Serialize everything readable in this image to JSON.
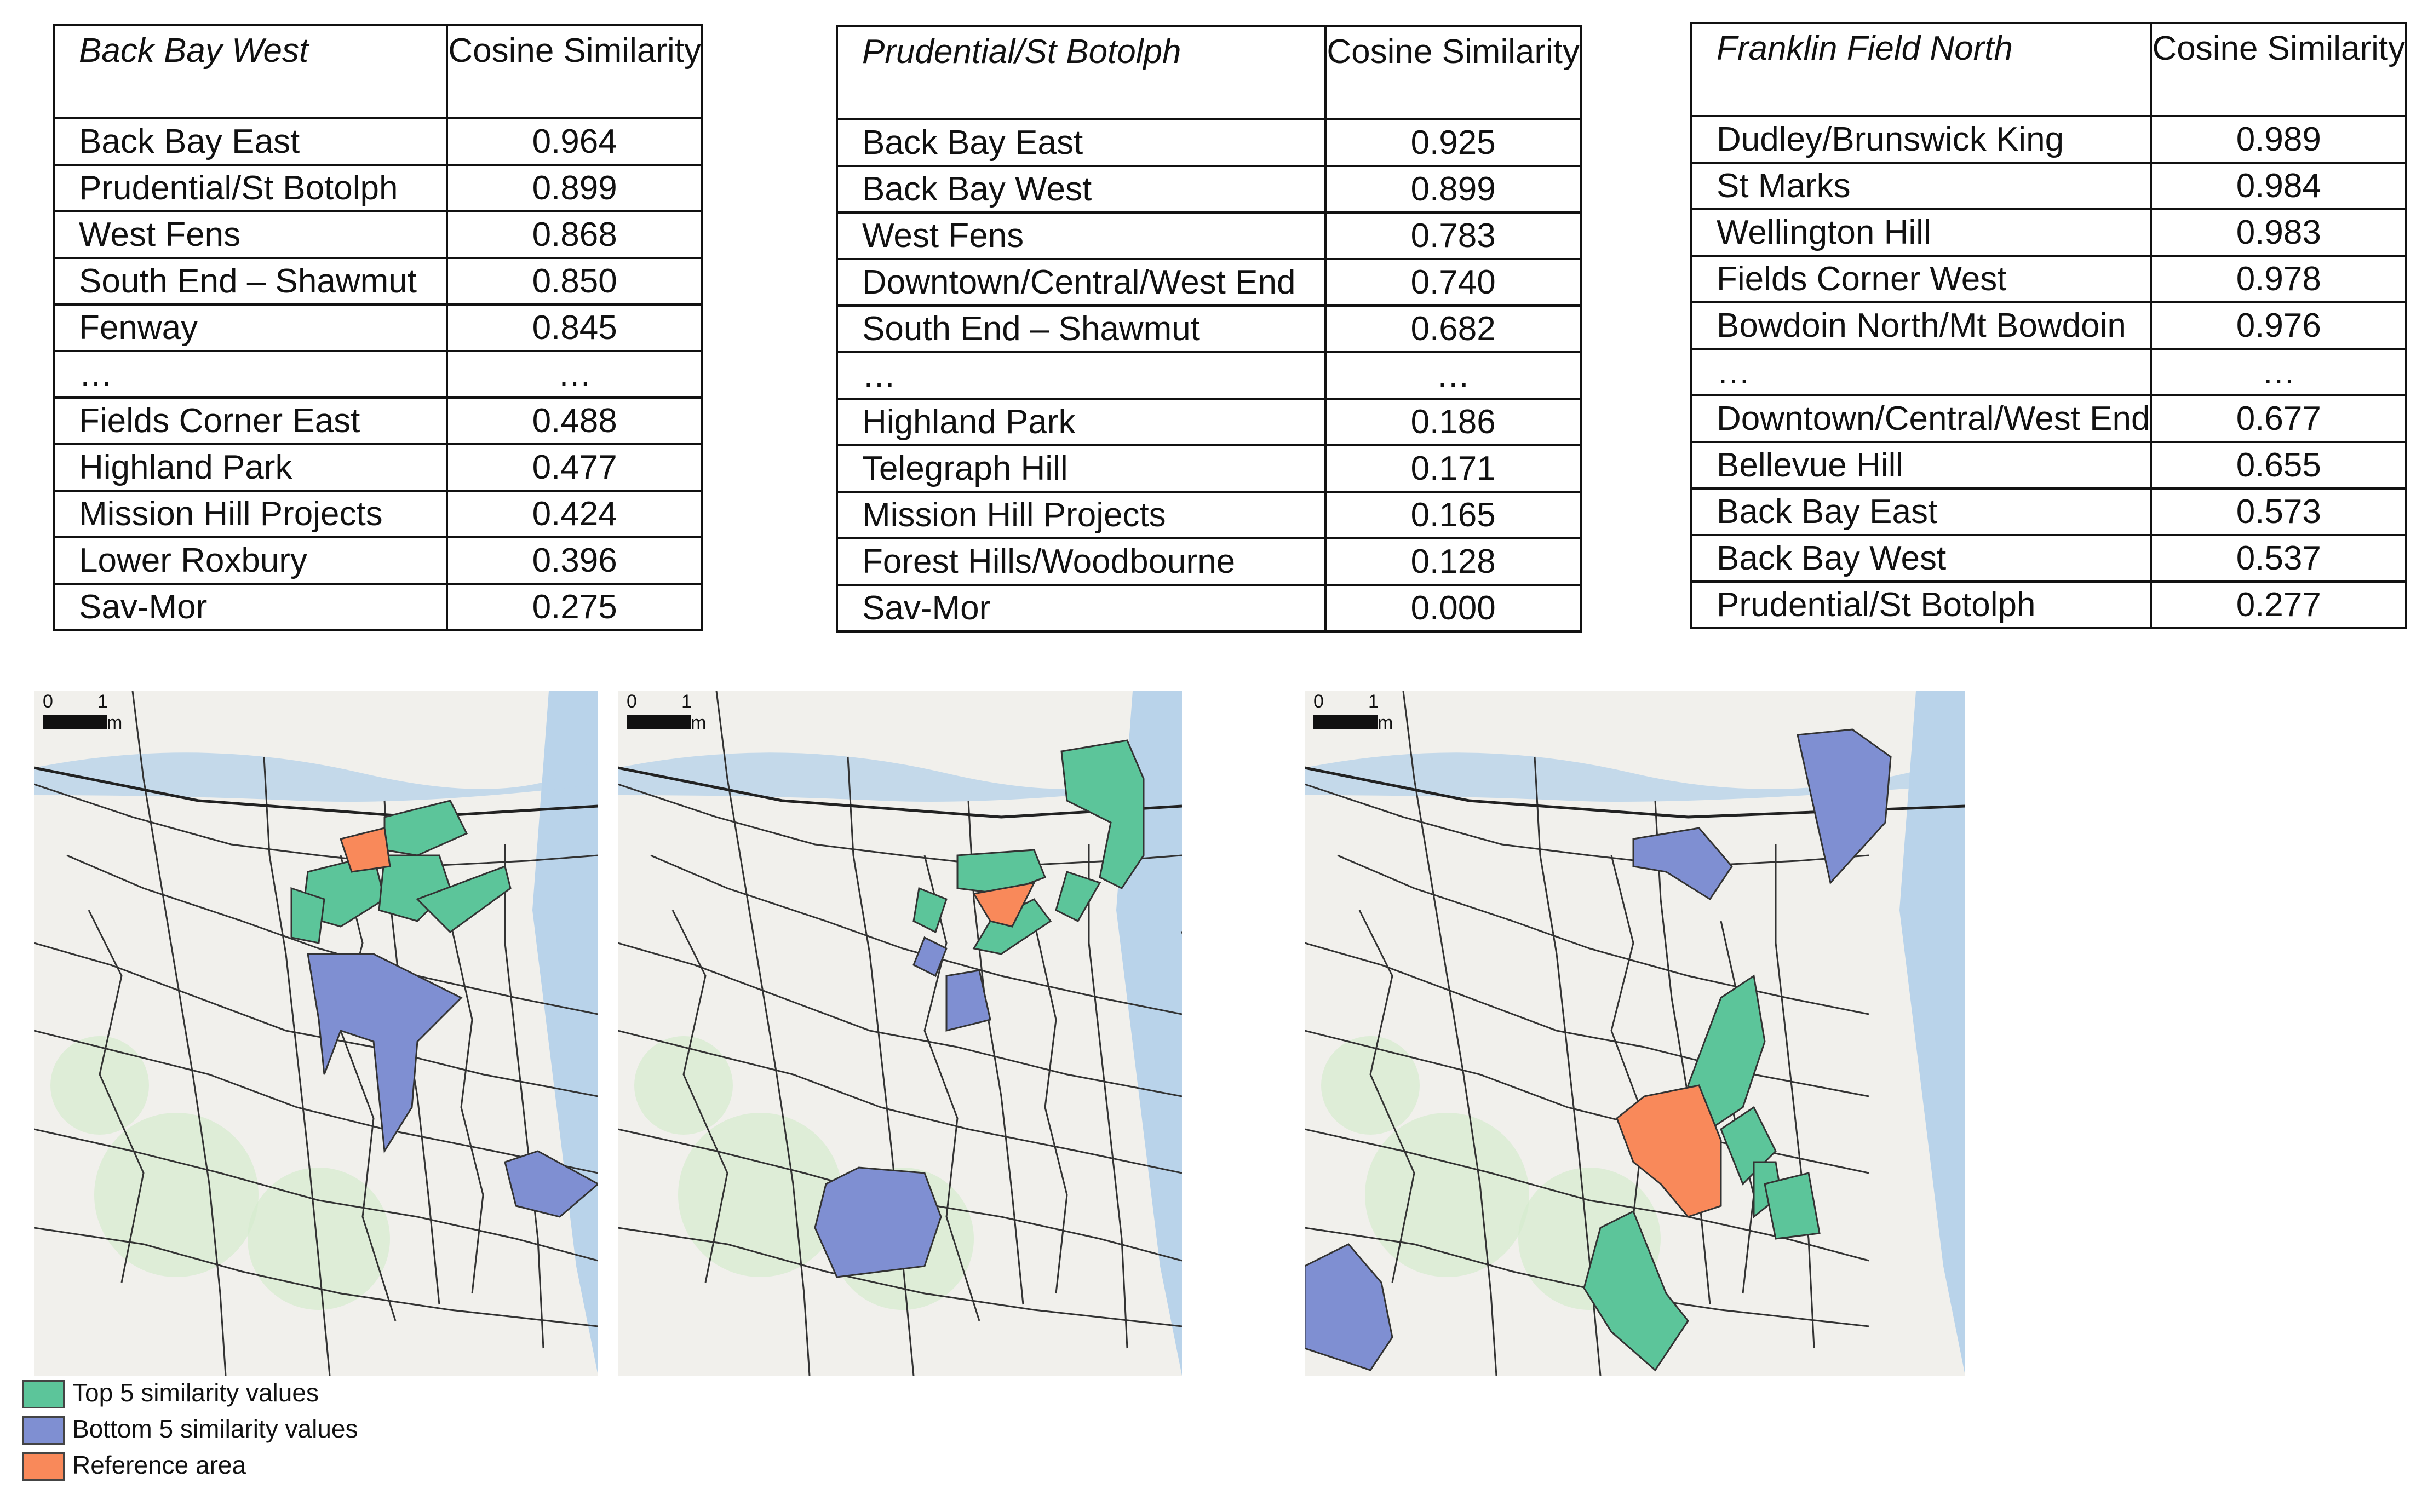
{
  "colors": {
    "top5": "#5cc59a",
    "bottom5": "#7f8fd2",
    "reference": "#f9895a",
    "boundary": "#333333",
    "basemap": "#f1f0ec",
    "water": "#b9d3ea",
    "park": "#d6ebcf"
  },
  "tables": [
    {
      "reference": "Back Bay West",
      "value_header": "Cosine Similarity",
      "rows": [
        {
          "area": "Back Bay East",
          "value": "0.964"
        },
        {
          "area": "Prudential/St Botolph",
          "value": "0.899"
        },
        {
          "area": "West Fens",
          "value": "0.868"
        },
        {
          "area": "South End – Shawmut",
          "value": "0.850"
        },
        {
          "area": "Fenway",
          "value": "0.845"
        },
        {
          "area": "…",
          "value": "…"
        },
        {
          "area": "Fields Corner East",
          "value": "0.488"
        },
        {
          "area": "Highland Park",
          "value": "0.477"
        },
        {
          "area": "Mission Hill Projects",
          "value": "0.424"
        },
        {
          "area": "Lower Roxbury",
          "value": "0.396"
        },
        {
          "area": "Sav-Mor",
          "value": "0.275"
        }
      ]
    },
    {
      "reference": "Prudential/St Botolph",
      "value_header": "Cosine Similarity",
      "rows": [
        {
          "area": "Back Bay East",
          "value": "0.925"
        },
        {
          "area": "Back Bay West",
          "value": "0.899"
        },
        {
          "area": "West Fens",
          "value": "0.783"
        },
        {
          "area": "Downtown/Central/West End",
          "value": "0.740"
        },
        {
          "area": "South End – Shawmut",
          "value": "0.682"
        },
        {
          "area": "…",
          "value": "…"
        },
        {
          "area": "Highland Park",
          "value": "0.186"
        },
        {
          "area": "Telegraph Hill",
          "value": "0.171"
        },
        {
          "area": "Mission Hill Projects",
          "value": "0.165"
        },
        {
          "area": "Forest Hills/Woodbourne",
          "value": "0.128"
        },
        {
          "area": "Sav-Mor",
          "value": "0.000"
        }
      ]
    },
    {
      "reference": "Franklin Field North",
      "value_header": "Cosine Similarity",
      "rows": [
        {
          "area": "Dudley/Brunswick King",
          "value": "0.989"
        },
        {
          "area": "St Marks",
          "value": "0.984"
        },
        {
          "area": "Wellington Hill",
          "value": "0.983"
        },
        {
          "area": "Fields Corner West",
          "value": "0.978"
        },
        {
          "area": "Bowdoin North/Mt Bowdoin",
          "value": "0.976"
        },
        {
          "area": "…",
          "value": "…"
        },
        {
          "area": "Downtown/Central/West End",
          "value": "0.677"
        },
        {
          "area": "Bellevue Hill",
          "value": "0.655"
        },
        {
          "area": "Back Bay East",
          "value": "0.573"
        },
        {
          "area": "Back Bay West",
          "value": "0.537"
        },
        {
          "area": "Prudential/St Botolph",
          "value": "0.277"
        }
      ]
    }
  ],
  "scale_bar": {
    "start": "0",
    "end": "1 km"
  },
  "legend": [
    {
      "key": "top5",
      "label": "Top 5 similarity values"
    },
    {
      "key": "bottom5",
      "label": "Bottom 5 similarity values"
    },
    {
      "key": "reference",
      "label": "Reference area"
    }
  ]
}
